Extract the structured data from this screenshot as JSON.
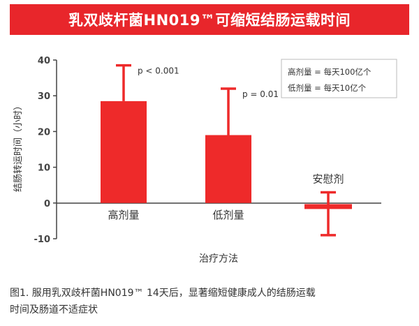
{
  "title": "乳双歧杆菌HN019™可缩短结肠运载时间",
  "caption": {
    "line1": "图1. 服用乳双歧杆菌HN019™ 14天后，显著缩短健康成人的结肠运载",
    "line2": "时间及肠道不适症状"
  },
  "colors": {
    "accent": "#e8262b",
    "bar": "#ee2a2a",
    "text": "#333333"
  },
  "chart_data": {
    "type": "bar",
    "categories": [
      "高剂量",
      "低剂量",
      "安慰剂"
    ],
    "values": [
      28.5,
      19,
      -1
    ],
    "error_upper": [
      38.5,
      32,
      3
    ],
    "error_lower": [
      28.5,
      19,
      -9
    ],
    "annotations": [
      "p < 0.001",
      "p = 0.01",
      ""
    ],
    "ylabel": "结肠转运时间（小时）",
    "xlabel": "治疗方法",
    "ylim": [
      -10,
      40
    ],
    "yticks": [
      -10,
      0,
      10,
      20,
      30,
      40
    ],
    "legend": [
      "高剂量 = 每天100亿个",
      "低剂量 = 每天10亿个"
    ],
    "legend_position": "top-right"
  }
}
